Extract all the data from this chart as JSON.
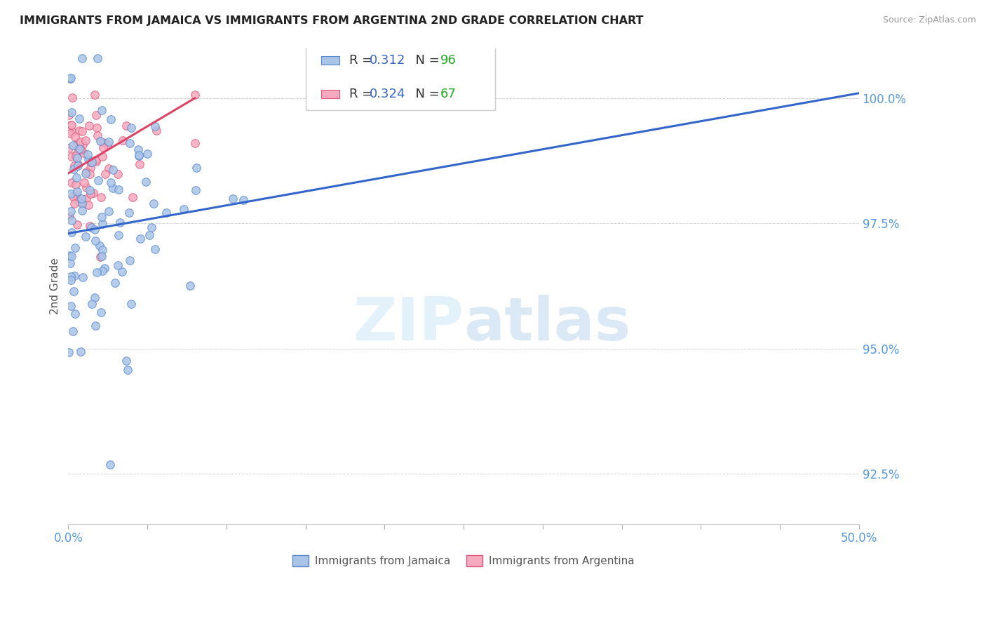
{
  "title": "IMMIGRANTS FROM JAMAICA VS IMMIGRANTS FROM ARGENTINA 2ND GRADE CORRELATION CHART",
  "source": "Source: ZipAtlas.com",
  "ylabel": "2nd Grade",
  "y_ticks": [
    92.5,
    95.0,
    97.5,
    100.0
  ],
  "x_min": 0.0,
  "x_max": 50.0,
  "y_min": 91.5,
  "y_max": 101.0,
  "jamaica_color": "#aac4e8",
  "argentina_color": "#f5aabf",
  "jamaica_edge": "#5588cc",
  "argentina_edge": "#dd5577",
  "trend_blue": "#3366cc",
  "trend_pink": "#dd4466",
  "R_jamaica": 0.312,
  "N_jamaica": 96,
  "R_argentina": 0.324,
  "N_argentina": 67,
  "legend_R_color": "#3366cc",
  "legend_N_color": "#22aa22",
  "tick_color": "#5599dd",
  "watermark_color": "#d0e8f8",
  "blue_trend_x": [
    0.0,
    50.0
  ],
  "blue_trend_y": [
    97.3,
    100.1
  ],
  "pink_trend_x": [
    0.0,
    8.0
  ],
  "pink_trend_y": [
    98.5,
    100.0
  ]
}
